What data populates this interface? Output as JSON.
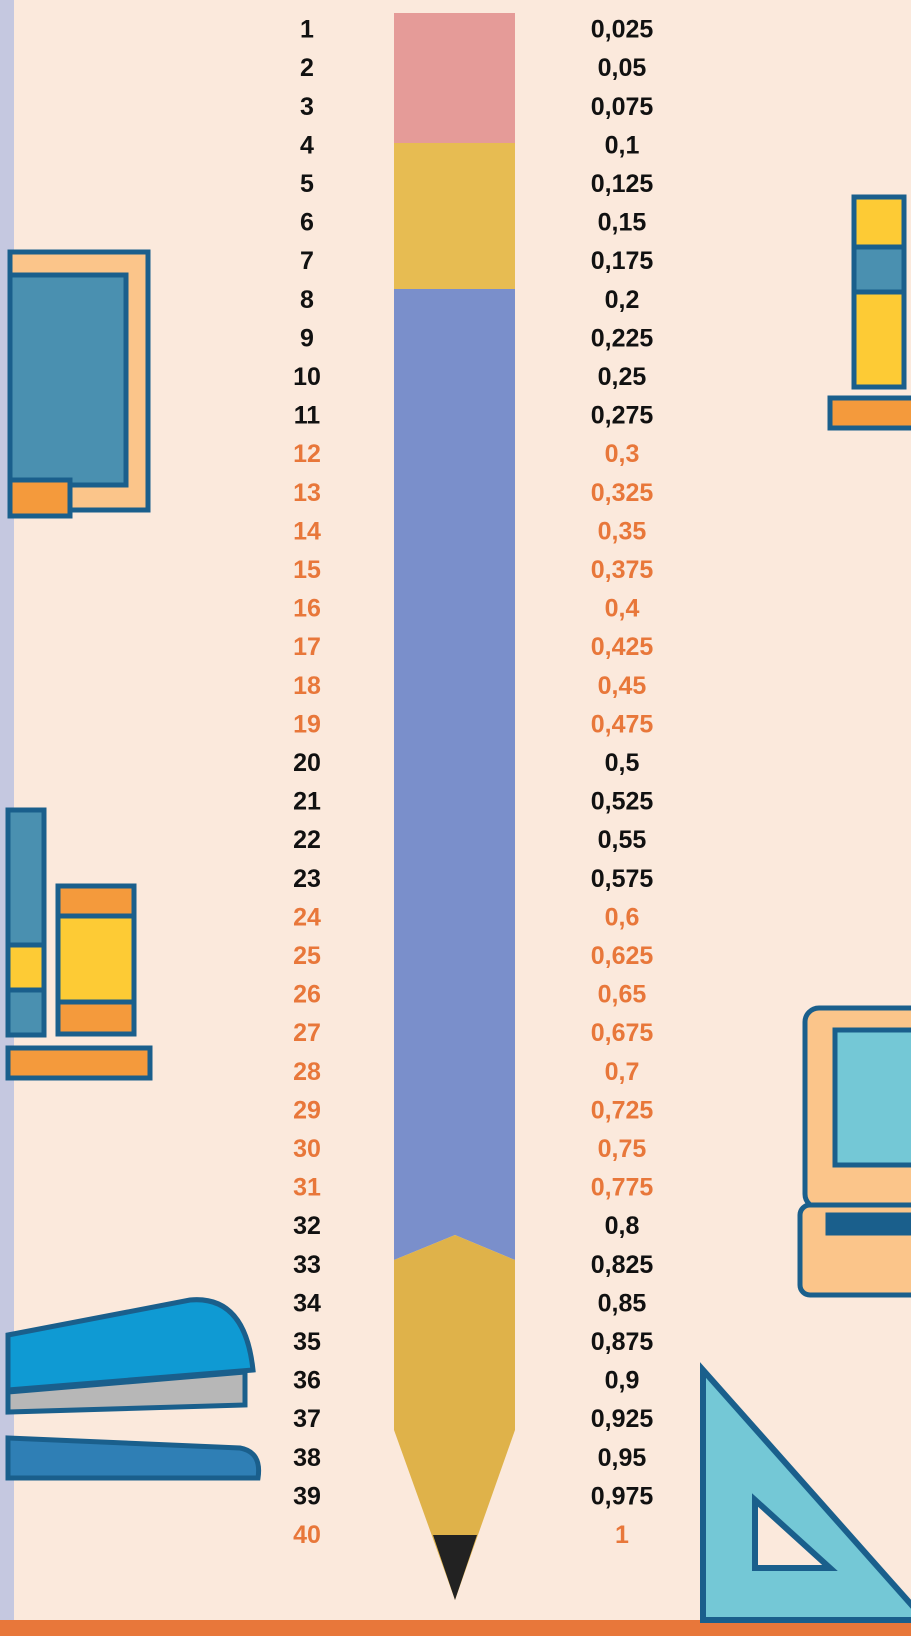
{
  "rows": [
    {
      "number": 1,
      "value": "0,025",
      "color": "#111111"
    },
    {
      "number": 2,
      "value": "0,05",
      "color": "#111111"
    },
    {
      "number": 3,
      "value": "0,075",
      "color": "#111111"
    },
    {
      "number": 4,
      "value": "0,1",
      "color": "#111111"
    },
    {
      "number": 5,
      "value": "0,125",
      "color": "#111111"
    },
    {
      "number": 6,
      "value": "0,15",
      "color": "#111111"
    },
    {
      "number": 7,
      "value": "0,175",
      "color": "#111111"
    },
    {
      "number": 8,
      "value": "0,2",
      "color": "#111111"
    },
    {
      "number": 9,
      "value": "0,225",
      "color": "#111111"
    },
    {
      "number": 10,
      "value": "0,25",
      "color": "#111111"
    },
    {
      "number": 11,
      "value": "0,275",
      "color": "#111111"
    },
    {
      "number": 12,
      "value": "0,3",
      "color": "#e8773a"
    },
    {
      "number": 13,
      "value": "0,325",
      "color": "#e8773a"
    },
    {
      "number": 14,
      "value": "0,35",
      "color": "#e8773a"
    },
    {
      "number": 15,
      "value": "0,375",
      "color": "#e8773a"
    },
    {
      "number": 16,
      "value": "0,4",
      "color": "#e8773a"
    },
    {
      "number": 17,
      "value": "0,425",
      "color": "#e8773a"
    },
    {
      "number": 18,
      "value": "0,45",
      "color": "#e8773a"
    },
    {
      "number": 19,
      "value": "0,475",
      "color": "#e8773a"
    },
    {
      "number": 20,
      "value": "0,5",
      "color": "#111111"
    },
    {
      "number": 21,
      "value": "0,525",
      "color": "#111111"
    },
    {
      "number": 22,
      "value": "0,55",
      "color": "#111111"
    },
    {
      "number": 23,
      "value": "0,575",
      "color": "#111111"
    },
    {
      "number": 24,
      "value": "0,6",
      "color": "#e8773a"
    },
    {
      "number": 25,
      "value": "0,625",
      "color": "#e8773a"
    },
    {
      "number": 26,
      "value": "0,65",
      "color": "#e8773a"
    },
    {
      "number": 27,
      "value": "0,675",
      "color": "#e8773a"
    },
    {
      "number": 28,
      "value": "0,7",
      "color": "#e8773a"
    },
    {
      "number": 29,
      "value": "0,725",
      "color": "#e8773a"
    },
    {
      "number": 30,
      "value": "0,75",
      "color": "#e8773a"
    },
    {
      "number": 31,
      "value": "0,775",
      "color": "#e8773a"
    },
    {
      "number": 32,
      "value": "0,8",
      "color": "#111111"
    },
    {
      "number": 33,
      "value": "0,825",
      "color": "#111111"
    },
    {
      "number": 34,
      "value": "0,85",
      "color": "#111111"
    },
    {
      "number": 35,
      "value": "0,875",
      "color": "#111111"
    },
    {
      "number": 36,
      "value": "0,9",
      "color": "#111111"
    },
    {
      "number": 37,
      "value": "0,925",
      "color": "#111111"
    },
    {
      "number": 38,
      "value": "0,95",
      "color": "#111111"
    },
    {
      "number": 39,
      "value": "0,975",
      "color": "#111111"
    },
    {
      "number": 40,
      "value": "1",
      "color": "#e8773a"
    }
  ]
}
